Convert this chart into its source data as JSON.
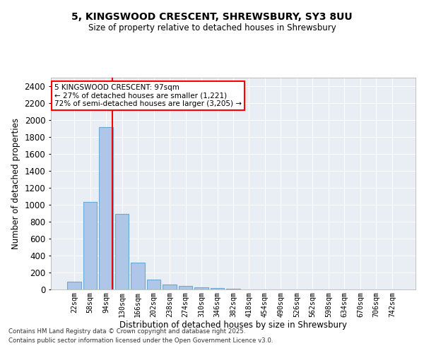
{
  "title1": "5, KINGSWOOD CRESCENT, SHREWSBURY, SY3 8UU",
  "title2": "Size of property relative to detached houses in Shrewsbury",
  "xlabel": "Distribution of detached houses by size in Shrewsbury",
  "ylabel": "Number of detached properties",
  "categories": [
    "22sqm",
    "58sqm",
    "94sqm",
    "130sqm",
    "166sqm",
    "202sqm",
    "238sqm",
    "274sqm",
    "310sqm",
    "346sqm",
    "382sqm",
    "418sqm",
    "454sqm",
    "490sqm",
    "526sqm",
    "562sqm",
    "598sqm",
    "634sqm",
    "670sqm",
    "706sqm",
    "742sqm"
  ],
  "values": [
    90,
    1030,
    1920,
    890,
    320,
    115,
    55,
    40,
    25,
    15,
    8,
    3,
    1,
    0,
    0,
    0,
    0,
    0,
    0,
    0,
    0
  ],
  "bar_color": "#aec6e8",
  "bar_edge_color": "#6aaad4",
  "ref_line_x": 2.42,
  "ref_line_color": "red",
  "annotation_text": "5 KINGSWOOD CRESCENT: 97sqm\n← 27% of detached houses are smaller (1,221)\n72% of semi-detached houses are larger (3,205) →",
  "ylim": [
    0,
    2500
  ],
  "yticks": [
    0,
    200,
    400,
    600,
    800,
    1000,
    1200,
    1400,
    1600,
    1800,
    2000,
    2200,
    2400
  ],
  "background_color": "#e8eef4",
  "grid_color": "white",
  "footer1": "Contains HM Land Registry data © Crown copyright and database right 2025.",
  "footer2": "Contains public sector information licensed under the Open Government Licence v3.0."
}
